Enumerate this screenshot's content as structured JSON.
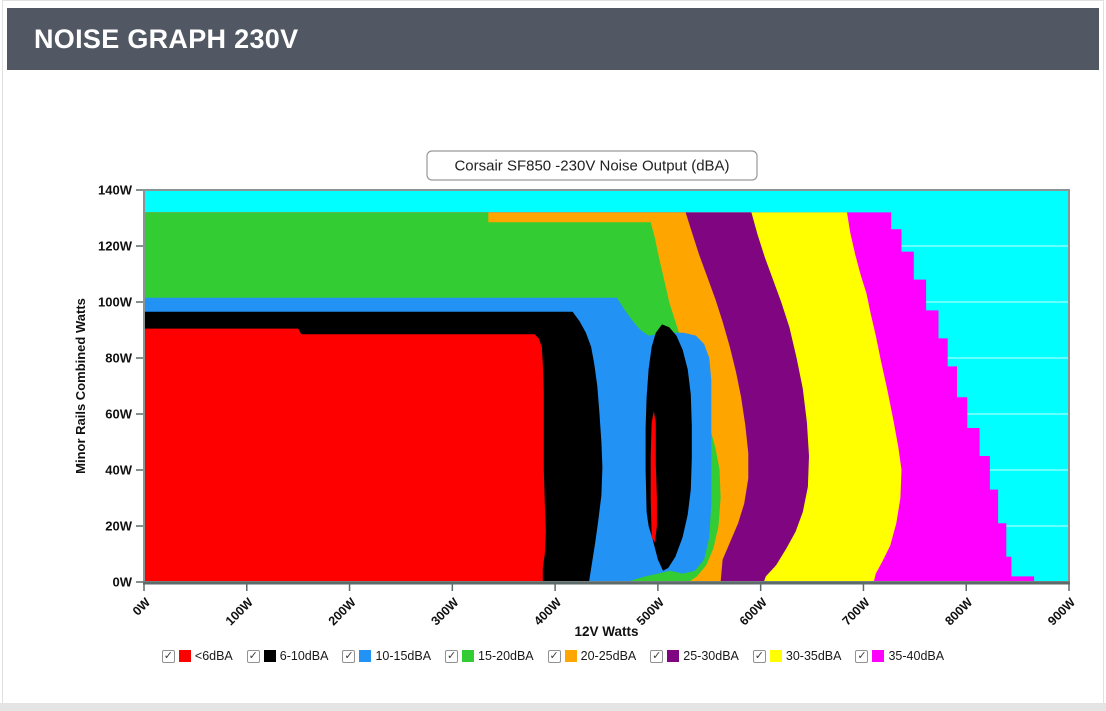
{
  "header": {
    "title": "NOISE GRAPH 230V"
  },
  "chart_data": {
    "type": "filled-contour",
    "title": "Corsair SF850 -230V Noise Output (dBA)",
    "xlabel": "12V Watts",
    "ylabel": "Minor Rails Combined Watts",
    "xlim": [
      0,
      900
    ],
    "ylim": [
      0,
      140
    ],
    "x_ticks": [
      {
        "v": 0,
        "label": "0W"
      },
      {
        "v": 100,
        "label": "100W"
      },
      {
        "v": 200,
        "label": "200W"
      },
      {
        "v": 300,
        "label": "300W"
      },
      {
        "v": 400,
        "label": "400W"
      },
      {
        "v": 500,
        "label": "500W"
      },
      {
        "v": 600,
        "label": "600W"
      },
      {
        "v": 700,
        "label": "700W"
      },
      {
        "v": 800,
        "label": "800W"
      },
      {
        "v": 900,
        "label": "900W"
      }
    ],
    "y_ticks": [
      {
        "v": 0,
        "label": "0W"
      },
      {
        "v": 20,
        "label": "20W"
      },
      {
        "v": 40,
        "label": "40W"
      },
      {
        "v": 60,
        "label": "60W"
      },
      {
        "v": 80,
        "label": "80W"
      },
      {
        "v": 100,
        "label": "100W"
      },
      {
        "v": 120,
        "label": "120W"
      },
      {
        "v": 140,
        "label": "140W"
      }
    ],
    "grid": {
      "horizontal_every": 20,
      "color": "#ffffff",
      "opacity": 0.65
    },
    "plot_background": {
      "color": "#00FFFF"
    },
    "axis_color": "#8a9494",
    "axis_bottom_color": "#5d6a6a",
    "legend": [
      {
        "label": "<6dBA",
        "color": "#FF0000",
        "checked": true
      },
      {
        "label": "6-10dBA",
        "color": "#000000",
        "checked": true
      },
      {
        "label": "10-15dBA",
        "color": "#2292F4",
        "checked": true
      },
      {
        "label": "15-20dBA",
        "color": "#33CC33",
        "checked": true
      },
      {
        "label": "20-25dBA",
        "color": "#FFA500",
        "checked": true
      },
      {
        "label": "25-30dBA",
        "color": "#800580",
        "checked": true
      },
      {
        "label": "30-35dBA",
        "color": "#FFFF00",
        "checked": true
      },
      {
        "label": "35-40dBA",
        "color": "#FF00FF",
        "checked": true
      }
    ],
    "regions": [
      {
        "name": "35-40dBA",
        "color": "#FF00FF",
        "points": [
          [
            0,
            0
          ],
          [
            0,
            132
          ],
          [
            727,
            132
          ],
          [
            727,
            126
          ],
          [
            737,
            126
          ],
          [
            737,
            118
          ],
          [
            749,
            118
          ],
          [
            749,
            108
          ],
          [
            761,
            108
          ],
          [
            761,
            97
          ],
          [
            773,
            97
          ],
          [
            773,
            87
          ],
          [
            782,
            87
          ],
          [
            782,
            77
          ],
          [
            791,
            77
          ],
          [
            791,
            66
          ],
          [
            801,
            66
          ],
          [
            801,
            55
          ],
          [
            813,
            55
          ],
          [
            813,
            45
          ],
          [
            823,
            45
          ],
          [
            823,
            33
          ],
          [
            831,
            33
          ],
          [
            831,
            21
          ],
          [
            839,
            21
          ],
          [
            839,
            9
          ],
          [
            844,
            9
          ],
          [
            844,
            2
          ],
          [
            866,
            2
          ],
          [
            866,
            0
          ]
        ]
      },
      {
        "name": "30-35dBA",
        "color": "#FFFF00",
        "points": [
          [
            0,
            0
          ],
          [
            0,
            132
          ],
          [
            684,
            132
          ],
          [
            687,
            125
          ],
          [
            692,
            117
          ],
          [
            697,
            110
          ],
          [
            703,
            103
          ],
          [
            707,
            96
          ],
          [
            712,
            88
          ],
          [
            717,
            79
          ],
          [
            723,
            69
          ],
          [
            729,
            58
          ],
          [
            734,
            48
          ],
          [
            737,
            40
          ],
          [
            736,
            30
          ],
          [
            732,
            21
          ],
          [
            726,
            13
          ],
          [
            718,
            7
          ],
          [
            712,
            3
          ],
          [
            710,
            0
          ]
        ]
      },
      {
        "name": "25-30dBA",
        "color": "#800580",
        "points": [
          [
            0,
            0
          ],
          [
            0,
            132
          ],
          [
            591,
            132
          ],
          [
            597,
            124
          ],
          [
            604,
            116
          ],
          [
            612,
            108
          ],
          [
            620,
            100
          ],
          [
            628,
            91
          ],
          [
            635,
            80
          ],
          [
            641,
            69
          ],
          [
            645,
            57
          ],
          [
            647,
            45
          ],
          [
            646,
            34
          ],
          [
            641,
            25
          ],
          [
            634,
            18
          ],
          [
            625,
            12
          ],
          [
            615,
            6
          ],
          [
            605,
            2
          ],
          [
            603,
            0
          ]
        ]
      },
      {
        "name": "20-25dBA",
        "color": "#FFA500",
        "points": [
          [
            0,
            0
          ],
          [
            0,
            132
          ],
          [
            527,
            132
          ],
          [
            533,
            125
          ],
          [
            540,
            117
          ],
          [
            548,
            109
          ],
          [
            556,
            101
          ],
          [
            563,
            93
          ],
          [
            570,
            84
          ],
          [
            576,
            75
          ],
          [
            581,
            66
          ],
          [
            585,
            56
          ],
          [
            588,
            46
          ],
          [
            588,
            37
          ],
          [
            584,
            28
          ],
          [
            578,
            21
          ],
          [
            570,
            14
          ],
          [
            563,
            8
          ],
          [
            561,
            0
          ]
        ]
      },
      {
        "name": "15-20dBA",
        "color": "#33CC33",
        "points": [
          [
            0,
            0
          ],
          [
            0,
            132
          ],
          [
            335,
            132
          ],
          [
            335,
            128.5
          ],
          [
            493,
            128.5
          ],
          [
            497,
            123
          ],
          [
            501,
            116
          ],
          [
            506,
            108
          ],
          [
            511,
            100
          ],
          [
            517,
            93
          ],
          [
            524,
            85
          ],
          [
            532,
            76
          ],
          [
            541,
            66
          ],
          [
            549,
            57
          ],
          [
            556,
            48
          ],
          [
            560,
            40
          ],
          [
            561,
            30
          ],
          [
            559,
            20
          ],
          [
            554,
            12
          ],
          [
            547,
            6
          ],
          [
            538,
            2
          ],
          [
            530,
            0
          ]
        ]
      },
      {
        "name": "10-15dBA",
        "color": "#2292F4",
        "points": [
          [
            0,
            0
          ],
          [
            0,
            101.5
          ],
          [
            460,
            101.5
          ],
          [
            468,
            97
          ],
          [
            476,
            93
          ],
          [
            483,
            90
          ],
          [
            491,
            88
          ],
          [
            500,
            88.5
          ],
          [
            512,
            89
          ],
          [
            525,
            89
          ],
          [
            537,
            88
          ],
          [
            545,
            85
          ],
          [
            550,
            80
          ],
          [
            552,
            72
          ],
          [
            552,
            45
          ],
          [
            552,
            28
          ],
          [
            550,
            16
          ],
          [
            545,
            8
          ],
          [
            536,
            4
          ],
          [
            524,
            3
          ],
          [
            512,
            4
          ],
          [
            500,
            3
          ],
          [
            488,
            2
          ],
          [
            478,
            1
          ],
          [
            470,
            0
          ]
        ]
      },
      {
        "name": "6-10dBA",
        "color": "#000000",
        "points": [
          [
            0,
            0
          ],
          [
            0,
            96.5
          ],
          [
            417,
            96.5
          ],
          [
            424,
            93
          ],
          [
            430,
            89
          ],
          [
            435,
            84
          ],
          [
            438,
            78
          ],
          [
            441,
            70
          ],
          [
            443,
            61
          ],
          [
            445,
            50
          ],
          [
            446,
            41
          ],
          [
            445,
            31
          ],
          [
            442,
            22
          ],
          [
            439,
            14
          ],
          [
            436,
            7
          ],
          [
            433,
            0
          ]
        ]
      },
      {
        "name": "<6dBA",
        "color": "#FF0000",
        "points": [
          [
            0,
            0
          ],
          [
            0,
            90.5
          ],
          [
            150,
            90.5
          ],
          [
            153,
            88.5
          ],
          [
            380,
            88.5
          ],
          [
            384,
            87
          ],
          [
            387,
            84
          ],
          [
            388,
            78
          ],
          [
            389,
            68
          ],
          [
            389,
            40
          ],
          [
            390,
            28
          ],
          [
            391,
            18
          ],
          [
            390,
            10
          ],
          [
            388,
            5
          ],
          [
            388,
            0
          ]
        ]
      },
      {
        "name": "6-10dBA-island",
        "color": "#000000",
        "points": [
          [
            489,
            25
          ],
          [
            488,
            40
          ],
          [
            488,
            55
          ],
          [
            489,
            66
          ],
          [
            491,
            76
          ],
          [
            494,
            84
          ],
          [
            498,
            89
          ],
          [
            504,
            92
          ],
          [
            511,
            91
          ],
          [
            518,
            88
          ],
          [
            524,
            83
          ],
          [
            529,
            76
          ],
          [
            532,
            67
          ],
          [
            533,
            56
          ],
          [
            533,
            44
          ],
          [
            532,
            33
          ],
          [
            529,
            24
          ],
          [
            524,
            16
          ],
          [
            517,
            9
          ],
          [
            510,
            5
          ],
          [
            505,
            4
          ],
          [
            500,
            8
          ],
          [
            495,
            15
          ],
          [
            491,
            20
          ]
        ]
      },
      {
        "name": "<6dBA-island",
        "color": "#FF0000",
        "points": [
          [
            494,
            16
          ],
          [
            493,
            30
          ],
          [
            493,
            45
          ],
          [
            494,
            57
          ],
          [
            496,
            61
          ],
          [
            498,
            57
          ],
          [
            498,
            42
          ],
          [
            499,
            30
          ],
          [
            499,
            20
          ],
          [
            497,
            14
          ]
        ]
      }
    ]
  }
}
